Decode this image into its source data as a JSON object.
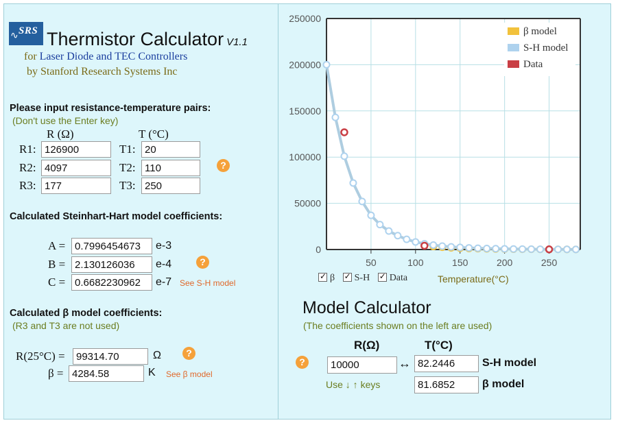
{
  "header": {
    "logo_text": "SRS",
    "title": "Thermistor Calculator",
    "version": "V1.1",
    "for_prefix": "for",
    "for_highlight": "Laser Diode and TEC Controllers",
    "by_line": "by Stanford Research Systems Inc"
  },
  "pairs": {
    "heading": "Please input resistance-temperature pairs:",
    "note": "(Don't use the Enter key)",
    "col_r": "R (Ω)",
    "col_t": "T (°C)",
    "rows": [
      {
        "r_label": "R1:",
        "r_value": "126900",
        "t_label": "T1:",
        "t_value": "20"
      },
      {
        "r_label": "R2:",
        "r_value": "4097",
        "t_label": "T2:",
        "t_value": "110"
      },
      {
        "r_label": "R3:",
        "r_value": "177",
        "t_label": "T3:",
        "t_value": "250"
      }
    ],
    "help": "?"
  },
  "sh": {
    "heading": "Calculated Steinhart-Hart model coefficients:",
    "rows": [
      {
        "label": "A =",
        "value": "0.7996454673",
        "exp": "e-3"
      },
      {
        "label": "B =",
        "value": "2.130126036",
        "exp": "e-4"
      },
      {
        "label": "C =",
        "value": "0.6682230962",
        "exp": "e-7"
      }
    ],
    "link": "See S-H model",
    "help": "?"
  },
  "beta": {
    "heading": "Calculated β model coefficients:",
    "note": "(R3 and T3 are not used)",
    "r25_label": "R(25°C) =",
    "r25_value": "99314.70",
    "r25_unit": "Ω",
    "beta_label": "β =",
    "beta_value": "4284.58",
    "beta_unit": "K",
    "link": "See β model",
    "help": "?"
  },
  "chart_data": {
    "type": "line",
    "title": "",
    "xlabel": "Temperature(°C)",
    "ylabel": "",
    "xlim": [
      0,
      285
    ],
    "ylim": [
      0,
      250000
    ],
    "x_ticks": [
      50,
      100,
      150,
      200,
      250
    ],
    "y_ticks": [
      0,
      50000,
      100000,
      150000,
      200000,
      250000
    ],
    "grid": true,
    "legend_position": "top-right",
    "series": [
      {
        "name": "β model",
        "color": "#f2c23c",
        "x": [
          120,
          130,
          140,
          150,
          160,
          170,
          180,
          190,
          200,
          210,
          220,
          230,
          240,
          250,
          260,
          270,
          280
        ],
        "y": [
          3300,
          2500,
          1900,
          1450,
          1150,
          900,
          720,
          580,
          470,
          390,
          320,
          270,
          225,
          190,
          160,
          140,
          120
        ]
      },
      {
        "name": "S-H model",
        "color": "#aed2ee",
        "x": [
          0,
          10,
          20,
          30,
          40,
          50,
          60,
          70,
          80,
          90,
          100,
          110,
          120,
          130,
          140,
          150,
          160,
          170,
          180,
          190,
          200,
          210,
          220,
          230,
          240,
          250,
          260,
          270,
          280
        ],
        "y": [
          200000,
          143000,
          101000,
          72000,
          52000,
          37000,
          27000,
          20000,
          15000,
          11000,
          8200,
          6200,
          4800,
          3700,
          2900,
          2300,
          1800,
          1400,
          1100,
          900,
          700,
          560,
          450,
          360,
          290,
          230,
          190,
          155,
          125
        ]
      },
      {
        "name": "Data",
        "color": "#c93f45",
        "x": [
          20,
          110,
          250
        ],
        "y": [
          126900,
          4097,
          177
        ]
      }
    ]
  },
  "toggles": [
    {
      "label": "β",
      "checked": true
    },
    {
      "label": "S-H",
      "checked": true
    },
    {
      "label": "Data",
      "checked": true
    }
  ],
  "model_calc": {
    "title": "Model Calculator",
    "note": "(The coefficients shown on the left are used)",
    "r_header": "R(Ω)",
    "t_header": "T(°C)",
    "r_value": "10000",
    "arrow": "↔",
    "sh_t_value": "82.2446",
    "sh_label": "S-H model",
    "beta_t_value": "81.6852",
    "beta_label": "β model",
    "keys_hint": "Use ↓ ↑ keys",
    "help": "?"
  }
}
